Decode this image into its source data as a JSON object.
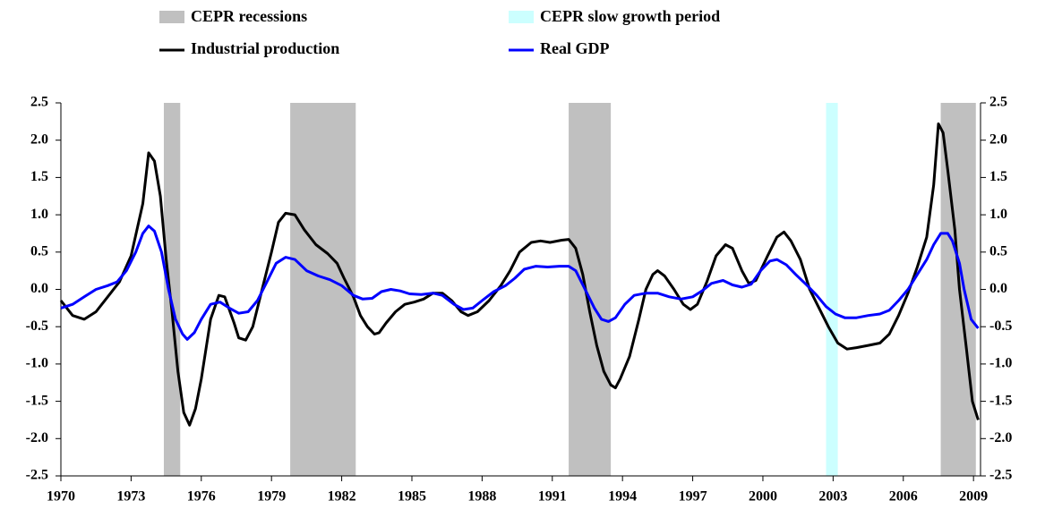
{
  "chart_data": {
    "type": "line",
    "xlim": [
      1970,
      2009.3
    ],
    "xticks": [
      1970,
      1973,
      1976,
      1979,
      1982,
      1985,
      1988,
      1991,
      1994,
      1997,
      2000,
      2003,
      2006,
      2009
    ],
    "ylim": [
      -2.5,
      2.5
    ],
    "yticks": [
      {
        "value": 2.5,
        "label": "2.5"
      },
      {
        "value": 2,
        "label": "2.0"
      },
      1.5,
      {
        "value": 1,
        "label": "1.0"
      },
      0.5,
      {
        "value": 0,
        "label": "0.0"
      },
      -0.5,
      {
        "value": -1,
        "label": "-1.0"
      },
      -1.5,
      {
        "value": -2,
        "label": "-2.0"
      },
      -2.5
    ],
    "y2lim": [
      -2.5,
      2.5
    ],
    "y2ticks": [
      {
        "value": 2.5,
        "label": "2.5"
      },
      {
        "value": 2,
        "label": "2.0"
      },
      1.5,
      {
        "value": 1,
        "label": "1.0"
      },
      0.5,
      {
        "value": 0,
        "label": "0.0"
      },
      -0.5,
      {
        "value": -1,
        "label": "-1.0"
      },
      -1.5,
      {
        "value": -2,
        "label": "-2.0"
      },
      -2.5
    ],
    "grid": false,
    "legend": "top",
    "bands": [
      {
        "name": "CEPR recessions",
        "color": "#c0c0c0",
        "ranges": [
          [
            1974.4,
            1975.1
          ],
          [
            1979.8,
            1982.6
          ],
          [
            1991.7,
            1993.5
          ],
          [
            2007.6,
            2009.1
          ]
        ]
      },
      {
        "name": "CEPR slow growth period",
        "color": "#ccffff",
        "ranges": [
          [
            2002.7,
            2003.2
          ]
        ]
      }
    ],
    "series": [
      {
        "name": "Industrial production",
        "color": "#000000",
        "x": [
          1970,
          1970.5,
          1971,
          1971.5,
          1972,
          1972.5,
          1973,
          1973.5,
          1973.75,
          1974,
          1974.25,
          1974.5,
          1974.75,
          1975,
          1975.25,
          1975.5,
          1975.75,
          1976,
          1976.4,
          1976.75,
          1977,
          1977.4,
          1977.6,
          1977.9,
          1978.2,
          1978.6,
          1979,
          1979.3,
          1979.6,
          1980,
          1980.4,
          1980.9,
          1981.4,
          1981.8,
          1982.1,
          1982.5,
          1982.8,
          1983.1,
          1983.4,
          1983.6,
          1983.9,
          1984.3,
          1984.7,
          1985.1,
          1985.5,
          1985.9,
          1986.3,
          1986.7,
          1987.1,
          1987.4,
          1987.8,
          1988.3,
          1988.8,
          1989.2,
          1989.6,
          1990.1,
          1990.5,
          1990.9,
          1991.4,
          1991.7,
          1992,
          1992.3,
          1992.6,
          1992.9,
          1993.2,
          1993.5,
          1993.7,
          1993.9,
          1994.3,
          1994.7,
          1995,
          1995.3,
          1995.5,
          1995.8,
          1996.2,
          1996.6,
          1996.9,
          1997.2,
          1997.6,
          1998,
          1998.4,
          1998.7,
          1999.1,
          1999.4,
          1999.7,
          2000.2,
          2000.6,
          2000.9,
          2001.2,
          2001.6,
          2002,
          2002.4,
          2002.8,
          2003.2,
          2003.6,
          2004,
          2004.5,
          2005,
          2005.4,
          2005.8,
          2006.2,
          2006.6,
          2007,
          2007.3,
          2007.5,
          2007.7,
          2007.9,
          2008.2,
          2008.4,
          2008.7,
          2008.95,
          2009.2
        ],
        "values": [
          -0.15,
          -0.35,
          -0.4,
          -0.3,
          -0.1,
          0.1,
          0.45,
          1.15,
          1.83,
          1.72,
          1.25,
          0.4,
          -0.3,
          -1.1,
          -1.65,
          -1.82,
          -1.6,
          -1.2,
          -0.4,
          -0.08,
          -0.1,
          -0.45,
          -0.65,
          -0.68,
          -0.5,
          0,
          0.5,
          0.9,
          1.02,
          1,
          0.8,
          0.6,
          0.48,
          0.35,
          0.15,
          -0.1,
          -0.35,
          -0.5,
          -0.6,
          -0.58,
          -0.45,
          -0.3,
          -0.2,
          -0.17,
          -0.13,
          -0.05,
          -0.05,
          -0.15,
          -0.3,
          -0.35,
          -0.3,
          -0.15,
          0.05,
          0.25,
          0.5,
          0.63,
          0.65,
          0.63,
          0.66,
          0.67,
          0.55,
          0.2,
          -0.3,
          -0.75,
          -1.1,
          -1.28,
          -1.32,
          -1.2,
          -0.9,
          -0.4,
          0,
          0.2,
          0.25,
          0.18,
          0,
          -0.2,
          -0.27,
          -0.2,
          0.1,
          0.45,
          0.6,
          0.55,
          0.25,
          0.08,
          0.12,
          0.45,
          0.7,
          0.77,
          0.65,
          0.4,
          0,
          -0.25,
          -0.5,
          -0.72,
          -0.8,
          -0.78,
          -0.75,
          -0.72,
          -0.6,
          -0.35,
          -0.05,
          0.3,
          0.7,
          1.4,
          2.22,
          2.1,
          1.6,
          0.8,
          0,
          -0.8,
          -1.5,
          -1.75
        ]
      },
      {
        "name": "Real GDP",
        "color": "#0000ff",
        "x": [
          1970,
          1970.5,
          1971,
          1971.5,
          1972,
          1972.4,
          1972.8,
          1973.2,
          1973.5,
          1973.75,
          1974,
          1974.3,
          1974.6,
          1974.9,
          1975.2,
          1975.4,
          1975.7,
          1976,
          1976.4,
          1976.8,
          1977.2,
          1977.6,
          1978,
          1978.4,
          1978.8,
          1979.2,
          1979.6,
          1980,
          1980.5,
          1981,
          1981.5,
          1982,
          1982.5,
          1982.9,
          1983.3,
          1983.7,
          1984.1,
          1984.5,
          1984.9,
          1985.4,
          1985.9,
          1986.3,
          1986.8,
          1987.2,
          1987.6,
          1988,
          1988.5,
          1989,
          1989.4,
          1989.8,
          1990.3,
          1990.8,
          1991.3,
          1991.7,
          1992,
          1992.4,
          1992.8,
          1993.1,
          1993.4,
          1993.7,
          1994.1,
          1994.5,
          1995,
          1995.5,
          1996,
          1996.5,
          1997,
          1997.4,
          1997.8,
          1998.3,
          1998.7,
          1999.1,
          1999.5,
          1999.9,
          2000.3,
          2000.6,
          2001,
          2001.4,
          2001.9,
          2002.3,
          2002.7,
          2003.1,
          2003.5,
          2004,
          2004.5,
          2005,
          2005.4,
          2005.8,
          2006.2,
          2006.6,
          2007,
          2007.3,
          2007.6,
          2007.9,
          2008.1,
          2008.4,
          2008.6,
          2008.9,
          2009.2
        ],
        "values": [
          -0.25,
          -0.2,
          -0.1,
          0,
          0.05,
          0.1,
          0.25,
          0.5,
          0.75,
          0.85,
          0.78,
          0.5,
          0,
          -0.4,
          -0.6,
          -0.67,
          -0.58,
          -0.4,
          -0.2,
          -0.17,
          -0.25,
          -0.32,
          -0.3,
          -0.15,
          0.1,
          0.35,
          0.43,
          0.4,
          0.25,
          0.18,
          0.13,
          0.05,
          -0.08,
          -0.13,
          -0.12,
          -0.03,
          0,
          -0.02,
          -0.06,
          -0.07,
          -0.05,
          -0.08,
          -0.2,
          -0.27,
          -0.25,
          -0.15,
          -0.03,
          0.05,
          0.15,
          0.27,
          0.31,
          0.3,
          0.31,
          0.31,
          0.25,
          0,
          -0.25,
          -0.4,
          -0.43,
          -0.38,
          -0.2,
          -0.08,
          -0.05,
          -0.05,
          -0.1,
          -0.13,
          -0.1,
          -0.02,
          0.08,
          0.12,
          0.06,
          0.03,
          0.07,
          0.25,
          0.38,
          0.4,
          0.33,
          0.2,
          0.05,
          -0.08,
          -0.23,
          -0.33,
          -0.38,
          -0.38,
          -0.35,
          -0.33,
          -0.28,
          -0.15,
          0,
          0.2,
          0.4,
          0.6,
          0.75,
          0.75,
          0.65,
          0.35,
          0,
          -0.4,
          -0.52
        ]
      }
    ]
  }
}
